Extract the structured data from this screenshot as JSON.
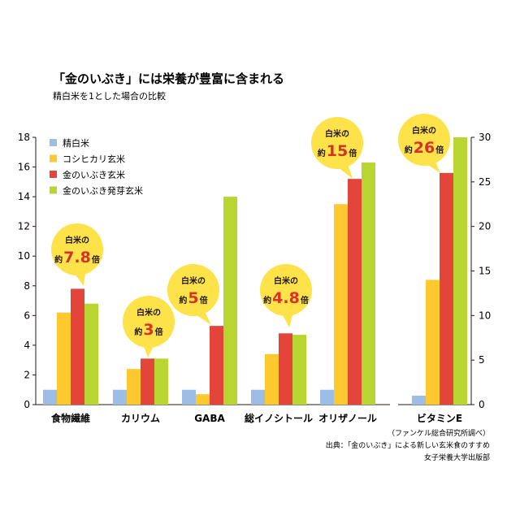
{
  "chart_data": {
    "type": "bar",
    "title": "「金のいぶき」には栄養が豊富に含まれる",
    "subtitle": "精白米を1とした場合の比較",
    "categories": [
      "食物繊維",
      "カリウム",
      "GABA",
      "総イノシトール",
      "オリザノール",
      "ビタミンE"
    ],
    "series": [
      {
        "name": "精白米",
        "color": "#9dbde6",
        "values": [
          1,
          1,
          1,
          1,
          1,
          1
        ]
      },
      {
        "name": "コシヒカリ玄米",
        "color": "#fdc92f",
        "values": [
          6.2,
          2.4,
          0.7,
          3.4,
          13.5,
          14
        ]
      },
      {
        "name": "金のいぶき玄米",
        "color": "#e4453b",
        "values": [
          7.8,
          3.1,
          5.3,
          4.8,
          15.2,
          26
        ]
      },
      {
        "name": "金のいぶき発芽玄米",
        "color": "#b8d531",
        "values": [
          6.8,
          3.1,
          14,
          4.7,
          16.3,
          30
        ]
      }
    ],
    "left_axis": {
      "ylim": [
        0,
        18
      ],
      "ticks": [
        "0",
        "2",
        "4",
        "6",
        "8",
        "10",
        "12",
        "14",
        "16",
        "18"
      ],
      "applies_to": [
        "食物繊維",
        "カリウム",
        "GABA",
        "総イノシトール",
        "オリザノール"
      ]
    },
    "right_axis": {
      "ylim": [
        0,
        30
      ],
      "ticks": [
        "0",
        "5",
        "10",
        "15",
        "20",
        "25",
        "30"
      ],
      "applies_to": [
        "ビタミンE"
      ]
    },
    "legend_position": "top-left",
    "grid": false,
    "callouts": [
      {
        "category": "食物繊維",
        "line1": "白米の",
        "prefix": "約",
        "number": "7.8",
        "suffix": "倍"
      },
      {
        "category": "カリウム",
        "line1": "白米の",
        "prefix": "約",
        "number": "3",
        "suffix": "倍"
      },
      {
        "category": "GABA",
        "line1": "白米の",
        "prefix": "約",
        "number": "5",
        "suffix": "倍"
      },
      {
        "category": "総イノシトール",
        "line1": "白米の",
        "prefix": "約",
        "number": "4.8",
        "suffix": "倍"
      },
      {
        "category": "オリザノール",
        "line1": "白米の",
        "prefix": "約",
        "number": "15",
        "suffix": "倍"
      },
      {
        "category": "ビタミンE",
        "line1": "白米の",
        "prefix": "約",
        "number": "26",
        "suffix": "倍"
      }
    ]
  },
  "source": {
    "line1": "（ファンケル総合研究所調べ）",
    "line2": "出典：「金のいぶき」による新しい玄米食のすすめ",
    "line3": "女子栄養大学出版部"
  },
  "colors": {
    "callout_bubble": "#fde24a",
    "callout_number": "#d7322a",
    "axis": "#231815"
  }
}
